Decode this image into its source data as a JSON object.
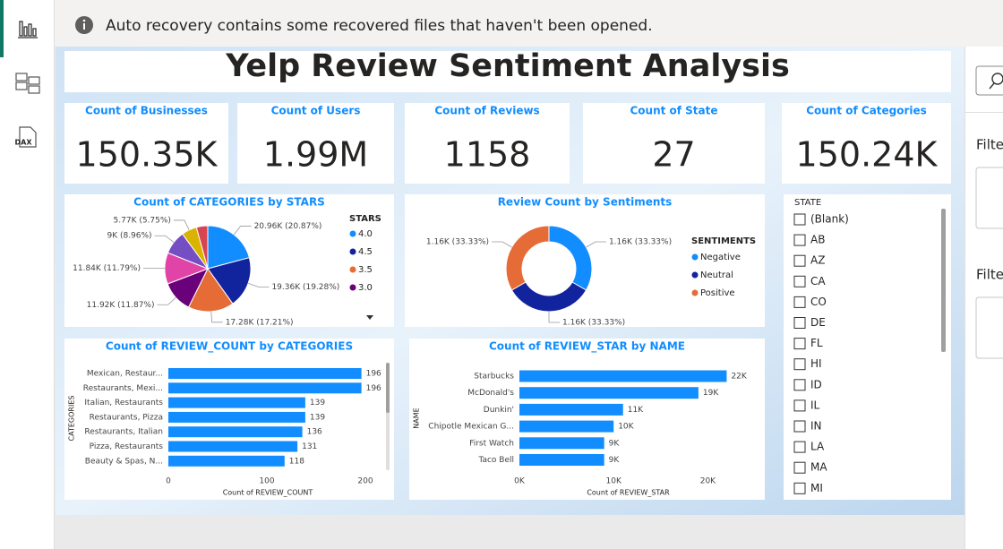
{
  "notification": "Auto recovery contains some recovered files that haven't been opened.",
  "rail": {
    "dax": "DAX"
  },
  "title": "Yelp Review Sentiment Analysis",
  "kpis": [
    {
      "label": "Count of Businesses",
      "value": "150.35K"
    },
    {
      "label": "Count of Users",
      "value": "1.99M"
    },
    {
      "label": "Count of Reviews",
      "value": "1158"
    },
    {
      "label": "Count of State",
      "value": "27"
    },
    {
      "label": "Count of Categories",
      "value": "150.24K"
    }
  ],
  "chart_data": [
    {
      "type": "pie",
      "title": "Count of CATEGORIES by STARS",
      "legend_title": "STARS",
      "categories": [
        "4.0",
        "4.5",
        "3.5",
        "3.0",
        null,
        null,
        null,
        null
      ],
      "values": [
        20960,
        19360,
        17280,
        11920,
        11840,
        9000,
        5770,
        4290
      ],
      "value_labels": [
        "20.96K (20.87%)",
        "19.36K (19.28%)",
        "17.28K (17.21%)",
        "11.92K (11.87%)",
        "11.84K (11.79%)",
        "9K (8.96%)",
        "5.77K (5.75%)",
        null
      ],
      "colors": [
        "#118dff",
        "#12239e",
        "#e66c37",
        "#6b007b",
        "#e044a7",
        "#744ec2",
        "#d9b300",
        "#d64550"
      ]
    },
    {
      "type": "donut",
      "title": "Review Count by Sentiments",
      "legend_title": "SENTIMENTS",
      "categories": [
        "Negative",
        "Neutral",
        "Positive"
      ],
      "values": [
        1160,
        1160,
        1160
      ],
      "value_labels": [
        "1.16K (33.33%)",
        "1.16K (33.33%)",
        "1.16K (33.33%)"
      ],
      "colors": [
        "#118dff",
        "#12239e",
        "#e66c37"
      ]
    },
    {
      "type": "bar",
      "title": "Count of REVIEW_COUNT by CATEGORIES",
      "x_label": "Count of REVIEW_COUNT",
      "y_label": "CATEGORIES",
      "categories": [
        "Mexican, Restaur...",
        "Restaurants, Mexi...",
        "Italian, Restaurants",
        "Restaurants, Pizza",
        "Restaurants, Italian",
        "Pizza, Restaurants",
        "Beauty & Spas, N..."
      ],
      "values": [
        196,
        196,
        139,
        139,
        136,
        131,
        118
      ],
      "color": "#118dff",
      "xlim": [
        0,
        220
      ],
      "xticks": [
        0,
        100,
        200
      ]
    },
    {
      "type": "bar",
      "title": "Count of REVIEW_STAR by NAME",
      "x_label": "Count of REVIEW_STAR",
      "y_label": "NAME",
      "categories": [
        "Starbucks",
        "McDonald's",
        "Dunkin'",
        "Chipotle Mexican G...",
        "First Watch",
        "Taco Bell"
      ],
      "values": [
        22000,
        19000,
        11000,
        10000,
        9000,
        9000
      ],
      "value_labels": [
        "22K",
        "19K",
        "11K",
        "10K",
        "9K",
        "9K"
      ],
      "color": "#118dff",
      "xlim": [
        0,
        25000
      ],
      "xticks": [
        {
          "value": 0,
          "label": "0K"
        },
        {
          "value": 10000,
          "label": "10K"
        },
        {
          "value": 20000,
          "label": "20K"
        }
      ]
    }
  ],
  "slicer": {
    "title": "STATE",
    "items": [
      "(Blank)",
      "AB",
      "AZ",
      "CA",
      "CO",
      "DE",
      "FL",
      "HI",
      "ID",
      "IL",
      "IN",
      "LA",
      "MA",
      "MI"
    ]
  },
  "filter_pane": {
    "labels": [
      "Filte",
      "Filte"
    ]
  }
}
